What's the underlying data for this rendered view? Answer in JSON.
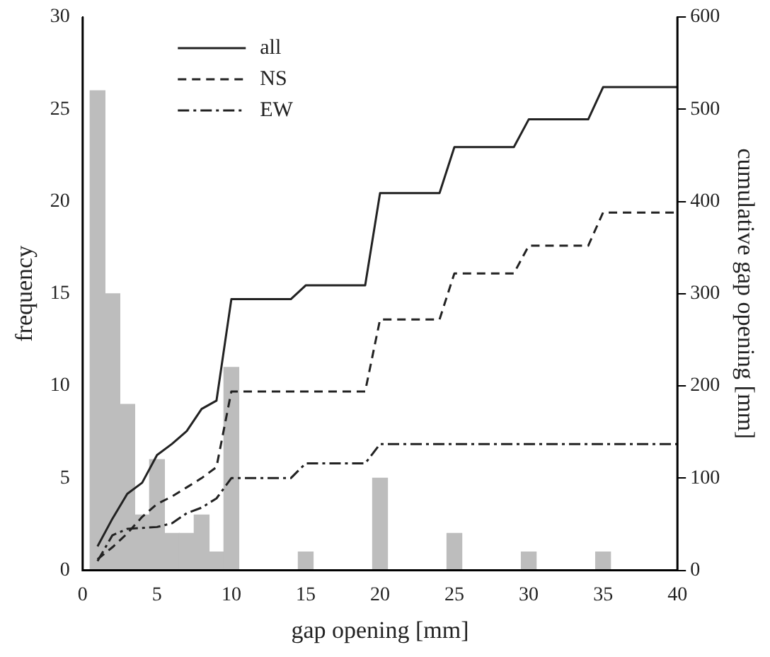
{
  "chart_data": {
    "type": "histogram",
    "xlabel": "gap opening [mm]",
    "ylabel": "frequency",
    "y2label": "cumulative gap opening [mm]",
    "bins": [
      0.5,
      1.5,
      2.5,
      3.5,
      4.5,
      5.5,
      6.5,
      7.5,
      8.5,
      9.5,
      10.5,
      11.5,
      12.5,
      13.5,
      14.5,
      15.5,
      16.5,
      17.5,
      18.5,
      19.5,
      20.5,
      21.5,
      22.5,
      23.5,
      24.5,
      25.5,
      26.5,
      27.5,
      28.5,
      29.5,
      30.5,
      31.5,
      32.5,
      33.5,
      34.5,
      35.5
    ],
    "values": [
      26,
      15,
      9,
      3,
      6,
      2,
      2,
      3,
      1,
      11,
      0,
      0,
      0,
      0,
      1,
      0,
      0,
      0,
      0,
      5,
      0,
      0,
      0,
      0,
      2,
      0,
      0,
      0,
      0,
      1,
      0,
      0,
      0,
      0,
      1
    ],
    "color": "#bdbdbd",
    "series": [
      {
        "name": "all",
        "type": "line",
        "axis": "y2",
        "color": "#222222",
        "line_style": "solid",
        "x": [
          1,
          2,
          3,
          4,
          5,
          6,
          7,
          8,
          9,
          10,
          14,
          15,
          19,
          20,
          24,
          25,
          29,
          30,
          34,
          35,
          40
        ],
        "values": [
          26,
          56,
          83,
          95,
          125,
          137,
          151,
          175,
          184,
          294,
          294,
          309,
          309,
          409,
          409,
          459,
          459,
          489,
          489,
          524,
          524
        ]
      },
      {
        "name": "NS",
        "type": "line",
        "axis": "y2",
        "color": "#222222",
        "line_style": "dashed",
        "x": [
          1,
          2,
          3,
          4,
          5,
          6,
          7,
          8,
          9,
          10,
          19,
          20,
          24,
          25,
          29,
          30,
          34,
          35,
          40
        ],
        "values": [
          12,
          25,
          40,
          58,
          72,
          80,
          90,
          100,
          112,
          194,
          194,
          272,
          272,
          322,
          322,
          352,
          352,
          388,
          388
        ]
      },
      {
        "name": "EW",
        "type": "line",
        "axis": "y2",
        "color": "#222222",
        "line_style": "dashdot",
        "x": [
          1,
          2,
          3,
          4,
          5,
          6,
          7,
          8,
          9,
          10,
          14,
          15,
          19,
          20,
          40
        ],
        "values": [
          10,
          38,
          45,
          46,
          47,
          51,
          62,
          68,
          78,
          100,
          100,
          116,
          116,
          137,
          137
        ]
      }
    ],
    "xlim": [
      0,
      40
    ],
    "xticks": [
      0,
      5,
      10,
      15,
      20,
      25,
      30,
      35,
      40
    ],
    "ylim": [
      0,
      30
    ],
    "yticks": [
      0,
      5,
      10,
      15,
      20,
      25,
      30
    ],
    "y2lim": [
      0,
      600
    ],
    "y2ticks": [
      0,
      100,
      200,
      300,
      400,
      500,
      600
    ],
    "grid": false,
    "legend": "top"
  }
}
